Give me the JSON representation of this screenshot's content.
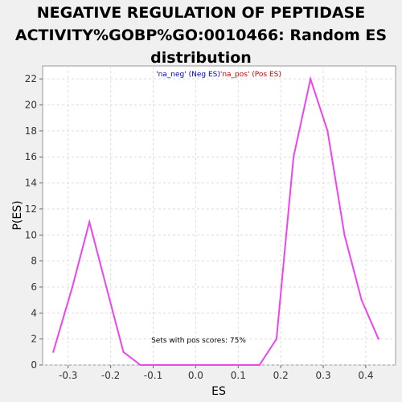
{
  "chart_data": {
    "type": "line",
    "title_lines": [
      "NEGATIVE REGULATION OF PEPTIDASE",
      "ACTIVITY%GOBP%GO:0010466: Random ES",
      "distribution"
    ],
    "xlabel": "ES",
    "ylabel": "P(ES)",
    "xlim": [
      -0.36,
      0.47
    ],
    "ylim": [
      0,
      23
    ],
    "xticks": [
      -0.3,
      -0.2,
      -0.1,
      0.0,
      0.1,
      0.2,
      0.3,
      0.4
    ],
    "xtick_labels": [
      "-0.3",
      "-0.2",
      "-0.1",
      "0.0",
      "0.1",
      "0.2",
      "0.3",
      "0.4"
    ],
    "yticks": [
      0,
      2,
      4,
      6,
      8,
      10,
      12,
      14,
      16,
      18,
      20,
      22
    ],
    "ytick_labels": [
      "0",
      "2",
      "4",
      "6",
      "8",
      "10",
      "12",
      "14",
      "16",
      "18",
      "20",
      "22"
    ],
    "grid": true,
    "legend": {
      "placement": "top-center",
      "entries": [
        {
          "text": "'na_neg' (Neg ES)",
          "color": "#0000cc"
        },
        {
          "text": "'na_pos' (Pos ES)",
          "color": "#cc0000"
        }
      ]
    },
    "annotation": "Sets with pos scores: 75%",
    "series": [
      {
        "color": "#ee44ee",
        "x": [
          -0.335,
          -0.29,
          -0.25,
          -0.21,
          -0.17,
          -0.13,
          -0.09,
          -0.05,
          -0.01,
          0.03,
          0.07,
          0.11,
          0.15,
          0.19,
          0.23,
          0.27,
          0.31,
          0.35,
          0.39,
          0.43
        ],
        "y": [
          1,
          6,
          11,
          6,
          1,
          0,
          0,
          0,
          0,
          0,
          0,
          0,
          0,
          2,
          16,
          22,
          18,
          10,
          5,
          2
        ]
      }
    ]
  }
}
